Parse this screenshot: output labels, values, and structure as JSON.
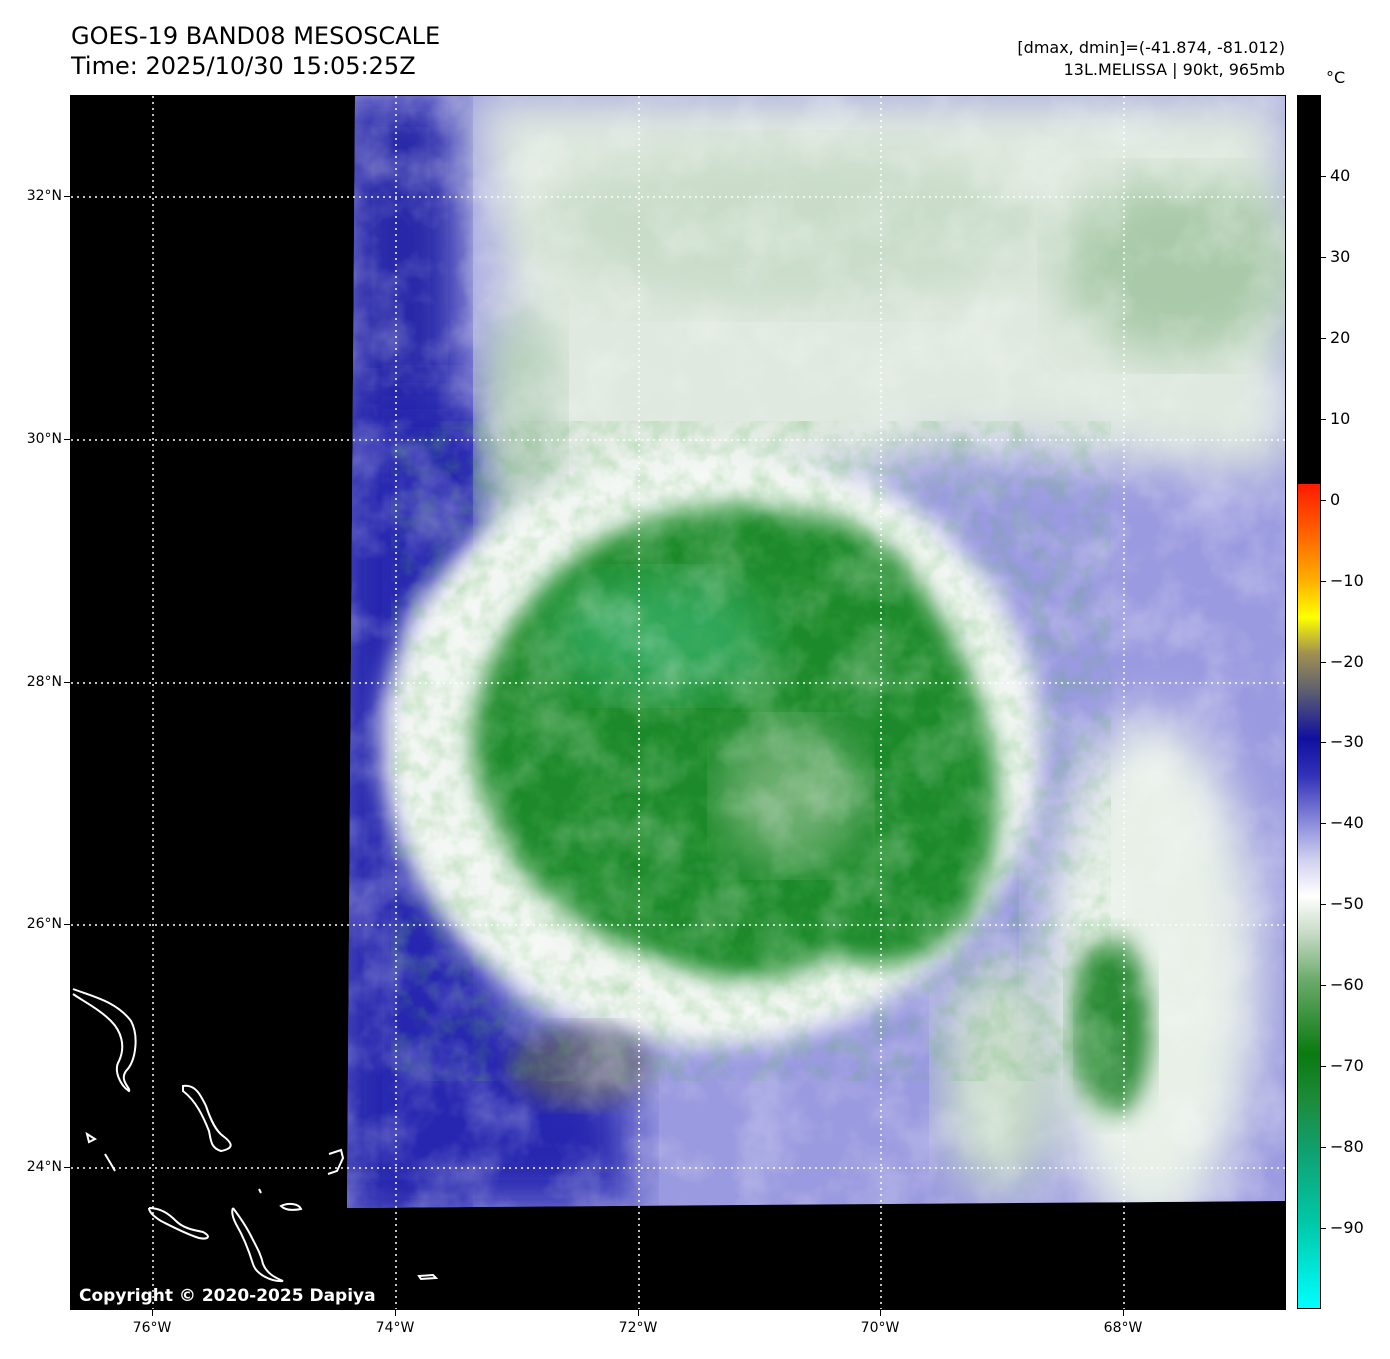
{
  "header": {
    "title_line1": "GOES-19 BAND08 MESOSCALE",
    "title_line2": "Time: 2025/10/30 15:05:25Z",
    "info_line1": "[dmax, dmin]=(-41.874, -81.012)",
    "info_line2": "13L.MELISSA | 90kt, 965mb"
  },
  "map": {
    "lat_labels": [
      "32°N",
      "30°N",
      "28°N",
      "26°N",
      "24°N"
    ],
    "lon_labels": [
      "76°W",
      "74°W",
      "72°W",
      "70°W",
      "68°W"
    ],
    "copyright": "Copyright © 2020-2025 Dapiya",
    "colors": {
      "background": "#000000",
      "cloud_warm": "#2b2bb0",
      "cloud_mid": "#8c8cdc",
      "cloud_cool": "#f0f4f0",
      "cloud_cold": "#1f8a2a",
      "cloud_coldest": "#40c080",
      "coastline": "#ffffff",
      "grid": "#ffffff"
    }
  },
  "colorbar": {
    "unit": "°C",
    "labels": [
      "40",
      "30",
      "20",
      "10",
      "0",
      "−10",
      "−20",
      "−30",
      "−40",
      "−50",
      "−60",
      "−70",
      "−80",
      "−90"
    ],
    "values": [
      40,
      30,
      20,
      10,
      0,
      -10,
      -20,
      -30,
      -40,
      -50,
      -60,
      -70,
      -80,
      -90
    ],
    "range": [
      -100,
      50
    ]
  }
}
